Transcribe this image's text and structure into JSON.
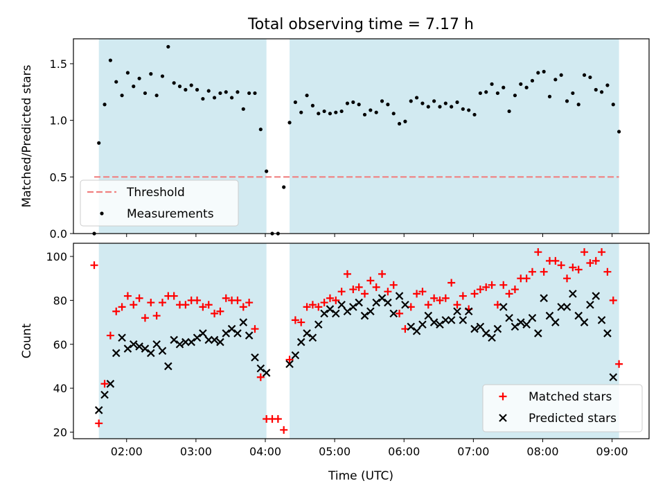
{
  "title": "Total observing time = 7.17 h",
  "xlabel": "Time (UTC)",
  "colors": {
    "shade": "#add8e6",
    "threshold": "#f08080",
    "measurement": "#000000",
    "matched": "#ff0000",
    "predicted": "#000000"
  },
  "chart_data": [
    {
      "type": "scatter",
      "ylabel": "Matched/Predicted stars",
      "xlim": [
        "01:14",
        "09:32"
      ],
      "ylim": [
        0,
        1.72
      ],
      "yticks": [
        0.0,
        0.5,
        1.0,
        1.5
      ],
      "shaded_spans": [
        [
          "01:36",
          "04:01"
        ],
        [
          "04:21",
          "09:06"
        ]
      ],
      "threshold": {
        "name": "Threshold",
        "y": 0.5,
        "x_range": [
          "01:32",
          "09:06"
        ]
      },
      "legend": {
        "position": "lower-left",
        "entries": [
          "Threshold",
          "Measurements"
        ]
      },
      "series": [
        {
          "name": "Measurements",
          "x": [
            "01:32",
            "01:36",
            "01:41",
            "01:46",
            "01:51",
            "01:56",
            "02:01",
            "02:06",
            "02:11",
            "02:16",
            "02:21",
            "02:26",
            "02:31",
            "02:36",
            "02:41",
            "02:46",
            "02:51",
            "02:56",
            "03:01",
            "03:06",
            "03:11",
            "03:16",
            "03:21",
            "03:26",
            "03:31",
            "03:36",
            "03:41",
            "03:46",
            "03:51",
            "03:56",
            "04:01",
            "04:06",
            "04:11",
            "04:16",
            "04:21",
            "04:26",
            "04:31",
            "04:36",
            "04:41",
            "04:46",
            "04:51",
            "04:56",
            "05:01",
            "05:06",
            "05:11",
            "05:16",
            "05:21",
            "05:26",
            "05:31",
            "05:36",
            "05:41",
            "05:46",
            "05:51",
            "05:56",
            "06:01",
            "06:06",
            "06:11",
            "06:16",
            "06:21",
            "06:26",
            "06:31",
            "06:36",
            "06:41",
            "06:46",
            "06:51",
            "06:56",
            "07:01",
            "07:06",
            "07:11",
            "07:16",
            "07:21",
            "07:26",
            "07:31",
            "07:36",
            "07:41",
            "07:46",
            "07:51",
            "07:56",
            "08:01",
            "08:06",
            "08:11",
            "08:16",
            "08:21",
            "08:26",
            "08:31",
            "08:36",
            "08:41",
            "08:46",
            "08:51",
            "08:56",
            "09:01",
            "09:06"
          ],
          "y": [
            0.0,
            0.8,
            1.14,
            1.53,
            1.34,
            1.22,
            1.42,
            1.3,
            1.37,
            1.24,
            1.41,
            1.22,
            1.39,
            1.65,
            1.33,
            1.3,
            1.27,
            1.31,
            1.27,
            1.19,
            1.26,
            1.2,
            1.24,
            1.25,
            1.2,
            1.25,
            1.1,
            1.24,
            1.24,
            0.92,
            0.55,
            0.0,
            0.0,
            0.41,
            0.98,
            1.16,
            1.07,
            1.22,
            1.13,
            1.06,
            1.08,
            1.06,
            1.07,
            1.08,
            1.15,
            1.16,
            1.14,
            1.05,
            1.09,
            1.07,
            1.17,
            1.14,
            1.06,
            0.97,
            0.99,
            1.17,
            1.2,
            1.15,
            1.12,
            1.17,
            1.12,
            1.15,
            1.12,
            1.16,
            1.1,
            1.09,
            1.05,
            1.24,
            1.25,
            1.32,
            1.24,
            1.29,
            1.08,
            1.22,
            1.32,
            1.29,
            1.35,
            1.42,
            1.43,
            1.21,
            1.36,
            1.4,
            1.17,
            1.24,
            1.14,
            1.4,
            1.38,
            1.27,
            1.25,
            1.31,
            1.14,
            0.9
          ]
        }
      ]
    },
    {
      "type": "scatter",
      "ylabel": "Count",
      "xlim": [
        "01:14",
        "09:32"
      ],
      "ylim": [
        17,
        106
      ],
      "yticks": [
        20,
        40,
        60,
        80,
        100
      ],
      "xticks": [
        "02:00",
        "03:00",
        "04:00",
        "05:00",
        "06:00",
        "07:00",
        "08:00",
        "09:00"
      ],
      "shaded_spans": [
        [
          "01:36",
          "04:01"
        ],
        [
          "04:21",
          "09:06"
        ]
      ],
      "legend": {
        "position": "lower-right",
        "entries": [
          "Matched stars",
          "Predicted stars"
        ]
      },
      "series": [
        {
          "name": "Matched stars",
          "marker": "plus",
          "x": [
            "01:32",
            "01:36",
            "01:41",
            "01:46",
            "01:51",
            "01:56",
            "02:01",
            "02:06",
            "02:11",
            "02:16",
            "02:21",
            "02:26",
            "02:31",
            "02:36",
            "02:41",
            "02:46",
            "02:51",
            "02:56",
            "03:01",
            "03:06",
            "03:11",
            "03:16",
            "03:21",
            "03:26",
            "03:31",
            "03:36",
            "03:41",
            "03:46",
            "03:51",
            "03:56",
            "04:01",
            "04:06",
            "04:11",
            "04:16",
            "04:21",
            "04:26",
            "04:31",
            "04:36",
            "04:41",
            "04:46",
            "04:51",
            "04:56",
            "05:01",
            "05:06",
            "05:11",
            "05:16",
            "05:21",
            "05:26",
            "05:31",
            "05:36",
            "05:41",
            "05:46",
            "05:51",
            "05:56",
            "06:01",
            "06:06",
            "06:11",
            "06:16",
            "06:21",
            "06:26",
            "06:31",
            "06:36",
            "06:41",
            "06:46",
            "06:51",
            "06:56",
            "07:01",
            "07:06",
            "07:11",
            "07:16",
            "07:21",
            "07:26",
            "07:31",
            "07:36",
            "07:41",
            "07:46",
            "07:51",
            "07:56",
            "08:01",
            "08:06",
            "08:11",
            "08:16",
            "08:21",
            "08:26",
            "08:31",
            "08:36",
            "08:41",
            "08:46",
            "08:51",
            "08:56",
            "09:01",
            "09:06"
          ],
          "y": [
            96,
            24,
            42,
            64,
            75,
            77,
            82,
            78,
            81,
            72,
            79,
            73,
            79,
            82,
            82,
            78,
            78,
            80,
            80,
            77,
            78,
            74,
            75,
            81,
            80,
            80,
            77,
            79,
            67,
            45,
            26,
            26,
            26,
            21,
            53,
            71,
            70,
            77,
            78,
            77,
            79,
            81,
            80,
            84,
            92,
            85,
            86,
            83,
            89,
            86,
            92,
            84,
            87,
            74,
            67,
            77,
            83,
            84,
            78,
            81,
            80,
            81,
            88,
            78,
            82,
            76,
            83,
            85,
            86,
            87,
            78,
            87,
            83,
            85,
            90,
            90,
            93,
            102,
            93,
            98,
            98,
            96,
            90,
            95,
            94,
            102,
            97,
            98,
            102,
            93,
            80,
            51
          ]
        },
        {
          "name": "Predicted stars",
          "marker": "x",
          "x": [
            "01:36",
            "01:41",
            "01:46",
            "01:51",
            "01:56",
            "02:01",
            "02:06",
            "02:11",
            "02:16",
            "02:21",
            "02:26",
            "02:31",
            "02:36",
            "02:41",
            "02:46",
            "02:51",
            "02:56",
            "03:01",
            "03:06",
            "03:11",
            "03:16",
            "03:21",
            "03:26",
            "03:31",
            "03:36",
            "03:41",
            "03:46",
            "03:51",
            "03:56",
            "04:01",
            "04:21",
            "04:26",
            "04:31",
            "04:36",
            "04:41",
            "04:46",
            "04:51",
            "04:56",
            "05:01",
            "05:06",
            "05:11",
            "05:16",
            "05:21",
            "05:26",
            "05:31",
            "05:36",
            "05:41",
            "05:46",
            "05:51",
            "05:56",
            "06:01",
            "06:06",
            "06:11",
            "06:16",
            "06:21",
            "06:26",
            "06:31",
            "06:36",
            "06:41",
            "06:46",
            "06:51",
            "06:56",
            "07:01",
            "07:06",
            "07:11",
            "07:16",
            "07:21",
            "07:26",
            "07:31",
            "07:36",
            "07:41",
            "07:46",
            "07:51",
            "07:56",
            "08:01",
            "08:06",
            "08:11",
            "08:16",
            "08:21",
            "08:26",
            "08:31",
            "08:36",
            "08:41",
            "08:46",
            "08:51",
            "08:56",
            "09:01"
          ],
          "y": [
            30,
            37,
            42,
            56,
            63,
            58,
            60,
            59,
            58,
            56,
            60,
            57,
            50,
            62,
            60,
            61,
            61,
            63,
            65,
            62,
            62,
            61,
            65,
            67,
            65,
            70,
            64,
            54,
            49,
            47,
            51,
            55,
            61,
            65,
            63,
            69,
            74,
            76,
            74,
            78,
            75,
            77,
            79,
            73,
            75,
            79,
            81,
            79,
            74,
            82,
            78,
            68,
            66,
            69,
            73,
            70,
            69,
            71,
            71,
            75,
            71,
            75,
            67,
            68,
            65,
            63,
            67,
            77,
            72,
            68,
            70,
            69,
            72,
            65,
            81,
            73,
            70,
            77,
            77,
            83,
            73,
            70,
            78,
            82,
            71,
            65,
            45
          ]
        }
      ]
    }
  ]
}
